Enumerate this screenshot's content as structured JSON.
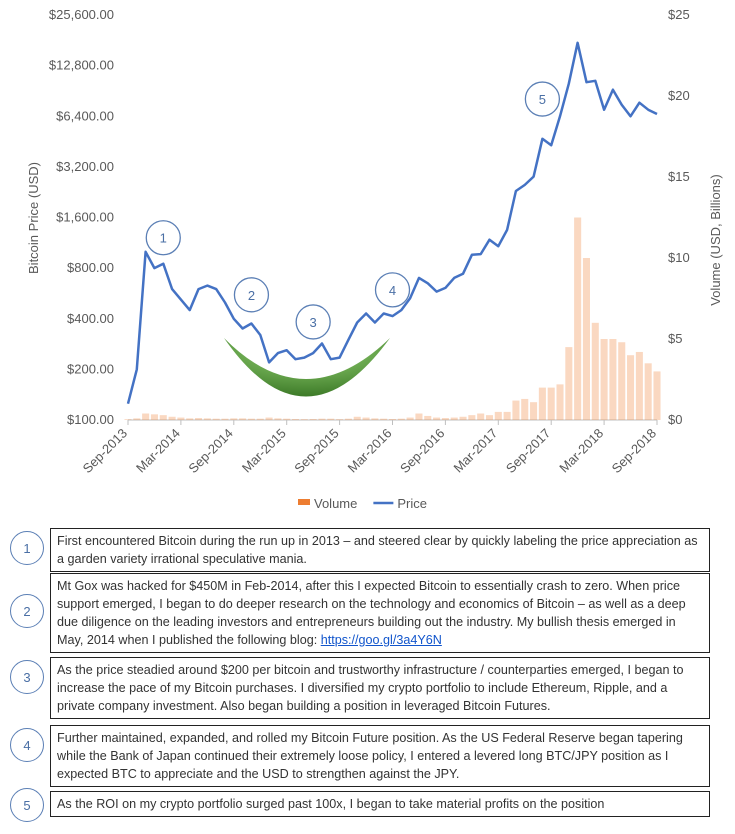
{
  "chart_data": {
    "type": "line",
    "y_label": "Bitcoin Price (USD)",
    "y2_label": "Volume (USD, Billions)",
    "log_scale": true,
    "x": [
      "2013-09",
      "2013-10",
      "2013-11",
      "2013-12",
      "2014-01",
      "2014-02",
      "2014-03",
      "2014-04",
      "2014-05",
      "2014-06",
      "2014-07",
      "2014-08",
      "2014-09",
      "2014-10",
      "2014-11",
      "2014-12",
      "2015-01",
      "2015-02",
      "2015-03",
      "2015-04",
      "2015-05",
      "2015-06",
      "2015-07",
      "2015-08",
      "2015-09",
      "2015-10",
      "2015-11",
      "2015-12",
      "2016-01",
      "2016-02",
      "2016-03",
      "2016-04",
      "2016-05",
      "2016-06",
      "2016-07",
      "2016-08",
      "2016-09",
      "2016-10",
      "2016-11",
      "2016-12",
      "2017-01",
      "2017-02",
      "2017-03",
      "2017-04",
      "2017-05",
      "2017-06",
      "2017-07",
      "2017-08",
      "2017-09",
      "2017-10",
      "2017-11",
      "2017-12",
      "2018-01",
      "2018-02",
      "2018-03",
      "2018-04",
      "2018-05",
      "2018-06",
      "2018-07",
      "2018-08",
      "2018-09"
    ],
    "series": [
      {
        "name": "Volume",
        "color": "#ed7d31",
        "axis": "y2",
        "values": [
          0.05,
          0.1,
          0.4,
          0.35,
          0.3,
          0.2,
          0.15,
          0.1,
          0.12,
          0.1,
          0.08,
          0.08,
          0.1,
          0.1,
          0.08,
          0.08,
          0.15,
          0.1,
          0.08,
          0.06,
          0.05,
          0.06,
          0.08,
          0.08,
          0.05,
          0.08,
          0.2,
          0.15,
          0.1,
          0.08,
          0.06,
          0.08,
          0.15,
          0.4,
          0.25,
          0.15,
          0.12,
          0.15,
          0.2,
          0.3,
          0.4,
          0.3,
          0.5,
          0.5,
          1.2,
          1.3,
          1.1,
          2.0,
          2.0,
          2.2,
          4.5,
          12.5,
          10.0,
          6.0,
          5.0,
          5.0,
          4.8,
          4.0,
          4.2,
          3.5,
          3.0
        ]
      },
      {
        "name": "Price",
        "color": "#4472c4",
        "values": [
          125,
          200,
          1000,
          800,
          850,
          600,
          520,
          450,
          600,
          630,
          600,
          500,
          400,
          350,
          375,
          320,
          220,
          250,
          260,
          230,
          235,
          250,
          285,
          230,
          235,
          300,
          380,
          430,
          380,
          430,
          415,
          450,
          530,
          700,
          650,
          580,
          610,
          700,
          740,
          960,
          970,
          1180,
          1080,
          1350,
          2300,
          2500,
          2800,
          4700,
          4300,
          6400,
          10000,
          17500,
          10200,
          10400,
          7000,
          9200,
          7500,
          6400,
          7700,
          7000,
          6600
        ]
      }
    ],
    "xticks": [
      {
        "value": "2013-09",
        "label": "Sep-2013"
      },
      {
        "value": "2014-03",
        "label": "Mar-2014"
      },
      {
        "value": "2014-09",
        "label": "Sep-2014"
      },
      {
        "value": "2015-03",
        "label": "Mar-2015"
      },
      {
        "value": "2015-09",
        "label": "Sep-2015"
      },
      {
        "value": "2016-03",
        "label": "Mar-2016"
      },
      {
        "value": "2016-09",
        "label": "Sep-2016"
      },
      {
        "value": "2017-03",
        "label": "Mar-2017"
      },
      {
        "value": "2017-09",
        "label": "Sep-2017"
      },
      {
        "value": "2018-03",
        "label": "Mar-2018"
      },
      {
        "value": "2018-09",
        "label": "Sep-2018"
      }
    ],
    "ylim": [
      100,
      25600
    ],
    "yticks": [
      {
        "value": 100,
        "label": "$100.00"
      },
      {
        "value": 200,
        "label": "$200.00"
      },
      {
        "value": 400,
        "label": "$400.00"
      },
      {
        "value": 800,
        "label": "$800.00"
      },
      {
        "value": 1600,
        "label": "$1,600.00"
      },
      {
        "value": 3200,
        "label": "$3,200.00"
      },
      {
        "value": 6400,
        "label": "$6,400.00"
      },
      {
        "value": 12800,
        "label": "$12,800.00"
      },
      {
        "value": 25600,
        "label": "$25,600.00"
      }
    ],
    "y2lim": [
      0,
      25
    ],
    "y2ticks": [
      {
        "value": 0,
        "label": "$0"
      },
      {
        "value": 5,
        "label": "$5"
      },
      {
        "value": 10,
        "label": "$10"
      },
      {
        "value": 15,
        "label": "$15"
      },
      {
        "value": 20,
        "label": "$20"
      },
      {
        "value": 25,
        "label": "$25"
      }
    ],
    "annotations": [
      {
        "label": "1",
        "x": "2014-01",
        "y": 1213
      },
      {
        "label": "2",
        "x": "2014-11",
        "y": 555
      },
      {
        "label": "3",
        "x": "2015-06",
        "y": 383
      },
      {
        "label": "4",
        "x": "2016-03",
        "y": 594
      },
      {
        "label": "5",
        "x": "2017-08",
        "y": 8100
      }
    ],
    "legend": "bottom"
  },
  "notes": [
    {
      "number": "1",
      "text": "First encountered Bitcoin during the run up in 2013 – and steered clear by quickly labeling the price appreciation as a garden variety irrational speculative mania."
    },
    {
      "number": "2",
      "text": "Mt Gox was hacked for $450M in Feb-2014, after this I expected Bitcoin to essentially crash to zero. When price support emerged, I began to do deeper research on the technology and economics of Bitcoin – as well as a deep due diligence on the leading investors and entrepreneurs building out the industry. My bullish thesis emerged in May, 2014 when I published the following blog:",
      "link": "https://goo.gl/3a4Y6N"
    },
    {
      "number": "3",
      "text": "As the price steadied around $200 per bitcoin and trustworthy infrastructure / counterparties emerged, I began to increase the pace of my Bitcoin purchases. I diversified my crypto portfolio to include Ethereum, Ripple, and a private company investment. Also began building a position in leveraged Bitcoin Futures."
    },
    {
      "number": "4",
      "text": "Further maintained, expanded, and rolled my Bitcoin Future position. As the US Federal Reserve began tapering while the Bank of Japan continued their extremely loose policy, I entered a levered long BTC/JPY position as I expected BTC to appreciate and the USD to strengthen against the JPY."
    },
    {
      "number": "5",
      "text": "As the ROI on my crypto portfolio surged past 100x, I began to take material profits on the position"
    }
  ]
}
